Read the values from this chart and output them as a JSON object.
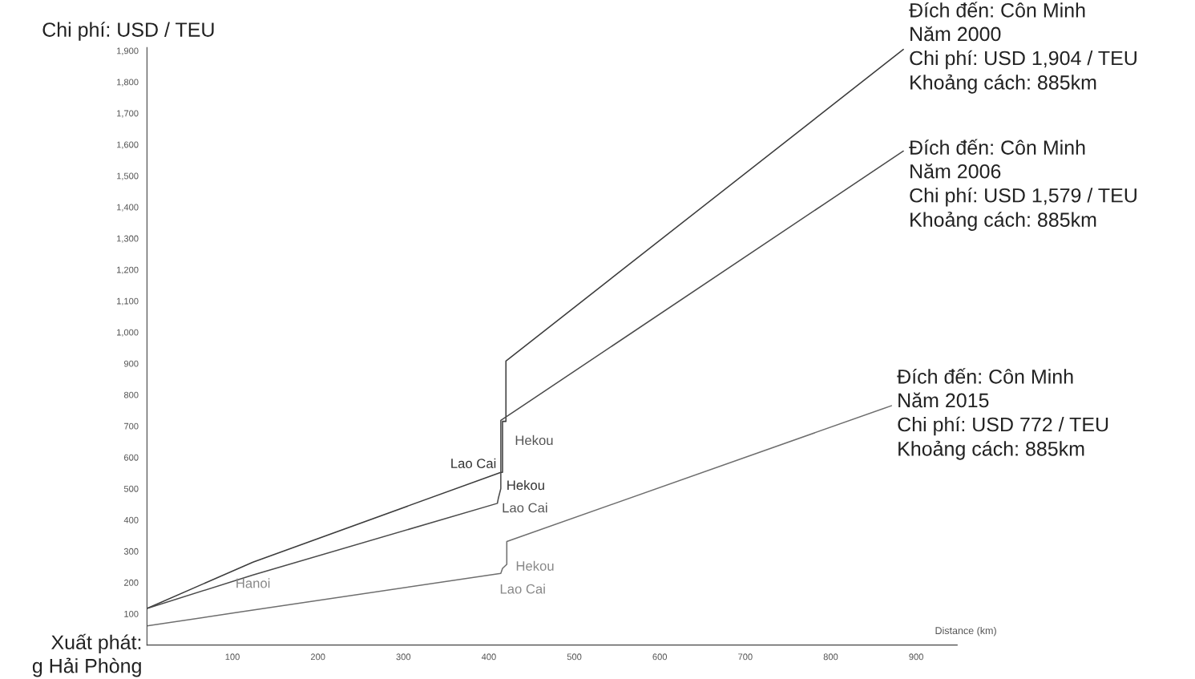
{
  "chart_data": {
    "type": "line",
    "xlabel": "Distance (km)",
    "ylabel": "Chi phí: USD / TEU",
    "xlim": [
      0,
      948
    ],
    "ylim": [
      0,
      1910
    ],
    "xticks": [
      100,
      200,
      300,
      400,
      500,
      600,
      700,
      800,
      900
    ],
    "yticks": [
      100,
      200,
      300,
      400,
      500,
      600,
      700,
      800,
      900,
      {
        "value": 1000,
        "label": "1,000"
      },
      {
        "value": 1100,
        "label": "1,100"
      },
      {
        "value": 1200,
        "label": "1,200"
      },
      {
        "value": 1300,
        "label": "1,300"
      },
      {
        "value": 1400,
        "label": "1,400"
      },
      {
        "value": 1500,
        "label": "1,500"
      },
      {
        "value": 1600,
        "label": "1,600"
      },
      {
        "value": 1700,
        "label": "1,700"
      },
      {
        "value": 1800,
        "label": "1,800"
      },
      {
        "value": 1900,
        "label": "1,900"
      }
    ],
    "grid": false,
    "legend": false,
    "marker": "none",
    "line_style": "solid",
    "series": [
      {
        "color": "#3c3c3c",
        "x": [
          0,
          124,
          414,
          416,
          416,
          420,
          420,
          885
        ],
        "values": [
          117,
          265,
          552,
          552,
          715,
          715,
          908,
          1904
        ]
      },
      {
        "color": "#4a4a4a",
        "x": [
          0,
          124,
          410,
          411,
          414,
          414,
          885
        ],
        "values": [
          117,
          224,
          453,
          468,
          500,
          718,
          1579
        ]
      },
      {
        "color": "#6e6e6e",
        "x": [
          0,
          124,
          414,
          416,
          421,
          421,
          871
        ],
        "values": [
          61,
          112,
          229,
          245,
          258,
          331,
          765
        ]
      }
    ],
    "annotations": [
      {
        "text": "Đích đến: Côn Minh\nNăm 2000\nChi phí: USD 1,904 / TEU\nKhoảng cách: 885km",
        "x": 885,
        "y": 1904
      },
      {
        "text": "Đích đến: Côn Minh\nNăm 2006\nChi phí: USD 1,579 / TEU\nKhoảng cách: 885km",
        "x": 885,
        "y": 1579
      },
      {
        "text": "Đích đến: Côn Minh\nNăm 2015\nChi phí: USD 772 / TEU\nKhoảng cách: 885km",
        "x": 871,
        "y": 765
      },
      {
        "text": "Hanoi",
        "x": 124,
        "y": 112
      },
      {
        "text": "Lao Cai",
        "x": 414,
        "y": 552
      },
      {
        "text": "Hekou",
        "x": 420,
        "y": 715
      },
      {
        "text": "Hekou",
        "x": 414,
        "y": 500
      },
      {
        "text": "Lao Cai",
        "x": 410,
        "y": 453
      },
      {
        "text": "Hekou",
        "x": 421,
        "y": 331
      },
      {
        "text": "Lao Cai",
        "x": 414,
        "y": 229
      },
      "Xuất phát:\ng Hải Phòng"
    ]
  }
}
